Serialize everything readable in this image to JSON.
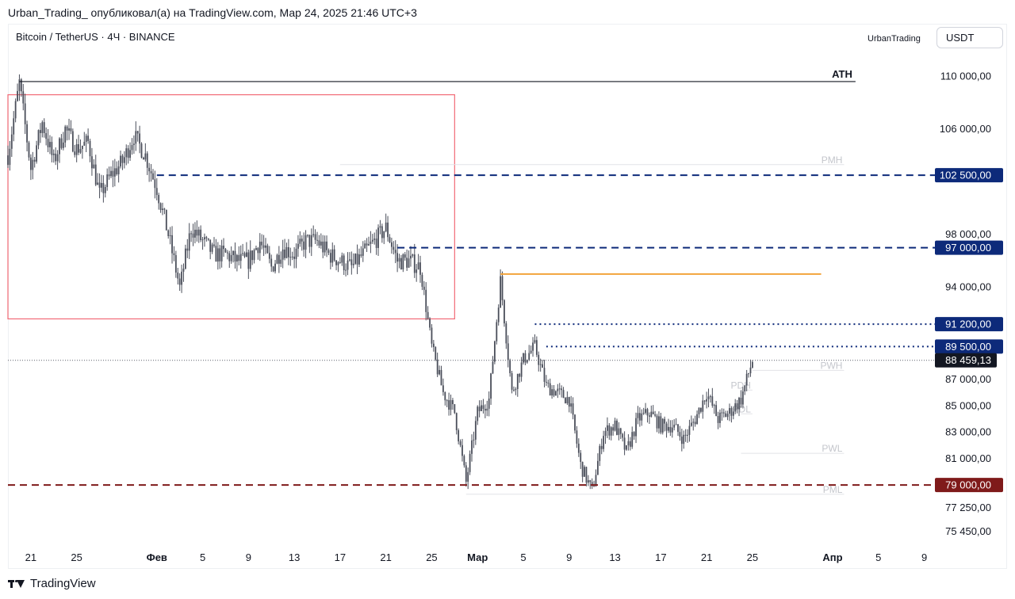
{
  "header": "Urban_Trading_ опубликовал(а) на TradingView.com, Мар 24, 2025 21:46 UTC+3",
  "symbol_line": "Bitcoin / TetherUS · 4Ч · BINANCE",
  "author": "UrbanTrading",
  "currency": "USDT",
  "footer": {
    "brand": "TradingView"
  },
  "colors": {
    "navy": "#0d2a7a",
    "maroon": "#7f1a1a",
    "orange": "#f2a33a",
    "red_box": "#f26a76",
    "candle": "#4a4e5a",
    "faint": "#c9cbd1"
  },
  "chart_data": {
    "type": "candlestick",
    "x_range": [
      "2025-01-19",
      "2025-04-10"
    ],
    "y_range": [
      74500,
      112000
    ],
    "y_ticks": [
      {
        "value": 110000,
        "label": "110 000,00"
      },
      {
        "value": 106000,
        "label": "106 000,00"
      },
      {
        "value": 98000,
        "label": "98 000,00"
      },
      {
        "value": 94000,
        "label": "94 000,00"
      },
      {
        "value": 87000,
        "label": "87 000,00"
      },
      {
        "value": 85000,
        "label": "85 000,00"
      },
      {
        "value": 83000,
        "label": "83 000,00"
      },
      {
        "value": 81000,
        "label": "81 000,00"
      },
      {
        "value": 77250,
        "label": "77 250,00"
      },
      {
        "value": 75450,
        "label": "75 450,00"
      }
    ],
    "x_ticks": [
      {
        "date": "2025-01-21",
        "label": "21",
        "bold": false
      },
      {
        "date": "2025-01-25",
        "label": "25",
        "bold": false
      },
      {
        "date": "2025-02-01",
        "label": "Фев",
        "bold": true
      },
      {
        "date": "2025-02-05",
        "label": "5",
        "bold": false
      },
      {
        "date": "2025-02-09",
        "label": "9",
        "bold": false
      },
      {
        "date": "2025-02-13",
        "label": "13",
        "bold": false
      },
      {
        "date": "2025-02-17",
        "label": "17",
        "bold": false
      },
      {
        "date": "2025-02-21",
        "label": "21",
        "bold": false
      },
      {
        "date": "2025-02-25",
        "label": "25",
        "bold": false
      },
      {
        "date": "2025-03-01",
        "label": "Мар",
        "bold": true
      },
      {
        "date": "2025-03-05",
        "label": "5",
        "bold": false
      },
      {
        "date": "2025-03-09",
        "label": "9",
        "bold": false
      },
      {
        "date": "2025-03-13",
        "label": "13",
        "bold": false
      },
      {
        "date": "2025-03-17",
        "label": "17",
        "bold": false
      },
      {
        "date": "2025-03-21",
        "label": "21",
        "bold": false
      },
      {
        "date": "2025-03-25",
        "label": "25",
        "bold": false
      },
      {
        "date": "2025-04-01",
        "label": "Апр",
        "bold": true
      },
      {
        "date": "2025-04-05",
        "label": "5",
        "bold": false
      },
      {
        "date": "2025-04-09",
        "label": "9",
        "bold": false
      }
    ],
    "price_path": [
      [
        "2025-01-19",
        104000
      ],
      [
        "2025-01-20",
        109500
      ],
      [
        "2025-01-21",
        103000
      ],
      [
        "2025-01-22",
        106500
      ],
      [
        "2025-01-23",
        103500
      ],
      [
        "2025-01-24",
        106000
      ],
      [
        "2025-01-25",
        104500
      ],
      [
        "2025-01-26",
        105000
      ],
      [
        "2025-01-27",
        101000
      ],
      [
        "2025-01-28",
        102500
      ],
      [
        "2025-01-29",
        103500
      ],
      [
        "2025-01-30",
        105500
      ],
      [
        "2025-01-31",
        104000
      ],
      [
        "2025-02-01",
        101500
      ],
      [
        "2025-02-02",
        98000
      ],
      [
        "2025-02-03",
        94000
      ],
      [
        "2025-02-04",
        98500
      ],
      [
        "2025-02-05",
        97500
      ],
      [
        "2025-02-06",
        96500
      ],
      [
        "2025-02-07",
        96500
      ],
      [
        "2025-02-08",
        96000
      ],
      [
        "2025-02-09",
        96000
      ],
      [
        "2025-02-10",
        97500
      ],
      [
        "2025-02-11",
        95500
      ],
      [
        "2025-02-12",
        97000
      ],
      [
        "2025-02-13",
        96500
      ],
      [
        "2025-02-14",
        97500
      ],
      [
        "2025-02-15",
        97500
      ],
      [
        "2025-02-16",
        96500
      ],
      [
        "2025-02-17",
        96000
      ],
      [
        "2025-02-18",
        95500
      ],
      [
        "2025-02-19",
        96500
      ],
      [
        "2025-02-20",
        97500
      ],
      [
        "2025-02-21",
        98500
      ],
      [
        "2025-02-22",
        96000
      ],
      [
        "2025-02-23",
        96000
      ],
      [
        "2025-02-24",
        95500
      ],
      [
        "2025-02-25",
        89500
      ],
      [
        "2025-02-26",
        86000
      ],
      [
        "2025-02-27",
        84500
      ],
      [
        "2025-02-28",
        79200
      ],
      [
        "2025-03-01",
        84500
      ],
      [
        "2025-03-02",
        85500
      ],
      [
        "2025-03-03",
        94500
      ],
      [
        "2025-03-04",
        86000
      ],
      [
        "2025-03-05",
        88500
      ],
      [
        "2025-03-06",
        89500
      ],
      [
        "2025-03-07",
        86500
      ],
      [
        "2025-03-08",
        86000
      ],
      [
        "2025-03-09",
        85500
      ],
      [
        "2025-03-10",
        80500
      ],
      [
        "2025-03-11",
        78500
      ],
      [
        "2025-03-12",
        83000
      ],
      [
        "2025-03-13",
        83500
      ],
      [
        "2025-03-14",
        81500
      ],
      [
        "2025-03-15",
        84000
      ],
      [
        "2025-03-16",
        84500
      ],
      [
        "2025-03-17",
        83500
      ],
      [
        "2025-03-18",
        83500
      ],
      [
        "2025-03-19",
        82500
      ],
      [
        "2025-03-20",
        84000
      ],
      [
        "2025-03-21",
        86000
      ],
      [
        "2025-03-22",
        84000
      ],
      [
        "2025-03-23",
        84500
      ],
      [
        "2025-03-24",
        85500
      ],
      [
        "2025-03-25",
        88459
      ]
    ],
    "rect_zone": {
      "from": "2025-01-19",
      "to": "2025-02-27",
      "top": 108600,
      "bottom": 91600
    },
    "ath_line": {
      "label": "ATH",
      "price": 109600,
      "from": "2025-01-20",
      "to": "2025-04-03"
    },
    "orange_line": {
      "price": 95000,
      "from": "2025-03-03",
      "to": "2025-03-31"
    },
    "current_price": {
      "price": 88459.13,
      "label": "88 459,13"
    },
    "levels": [
      {
        "price": 102500,
        "label": "102 500,00",
        "style": "dashed",
        "color": "#0d2a7a",
        "from": "2025-02-01"
      },
      {
        "price": 97000,
        "label": "97 000,00",
        "style": "dashed",
        "color": "#0d2a7a",
        "from": "2025-02-22"
      },
      {
        "price": 91200,
        "label": "91 200,00",
        "style": "dotted",
        "color": "#0d2a7a",
        "from": "2025-03-06"
      },
      {
        "price": 89500,
        "label": "89 500,00",
        "style": "dotted",
        "color": "#0d2a7a",
        "from": "2025-03-07"
      },
      {
        "price": 79000,
        "label": "79 000,00",
        "style": "dashed",
        "color": "#7f1a1a",
        "from": "2025-01-19"
      }
    ],
    "faint_labels": [
      {
        "label": "PMH",
        "price": 103300,
        "from": "2025-02-17",
        "to": "2025-04-02"
      },
      {
        "label": "PWH",
        "price": 87700,
        "from": "2025-03-25",
        "to": "2025-04-02"
      },
      {
        "label": "PDH",
        "price": 86200,
        "from": "2025-03-24",
        "to": "2025-03-25"
      },
      {
        "label": "PDL",
        "price": 84400,
        "from": "2025-03-24",
        "to": "2025-03-25"
      },
      {
        "label": "PWL",
        "price": 81400,
        "from": "2025-03-24",
        "to": "2025-04-02"
      },
      {
        "label": "PML",
        "price": 78300,
        "from": "2025-02-28",
        "to": "2025-04-02"
      }
    ]
  }
}
